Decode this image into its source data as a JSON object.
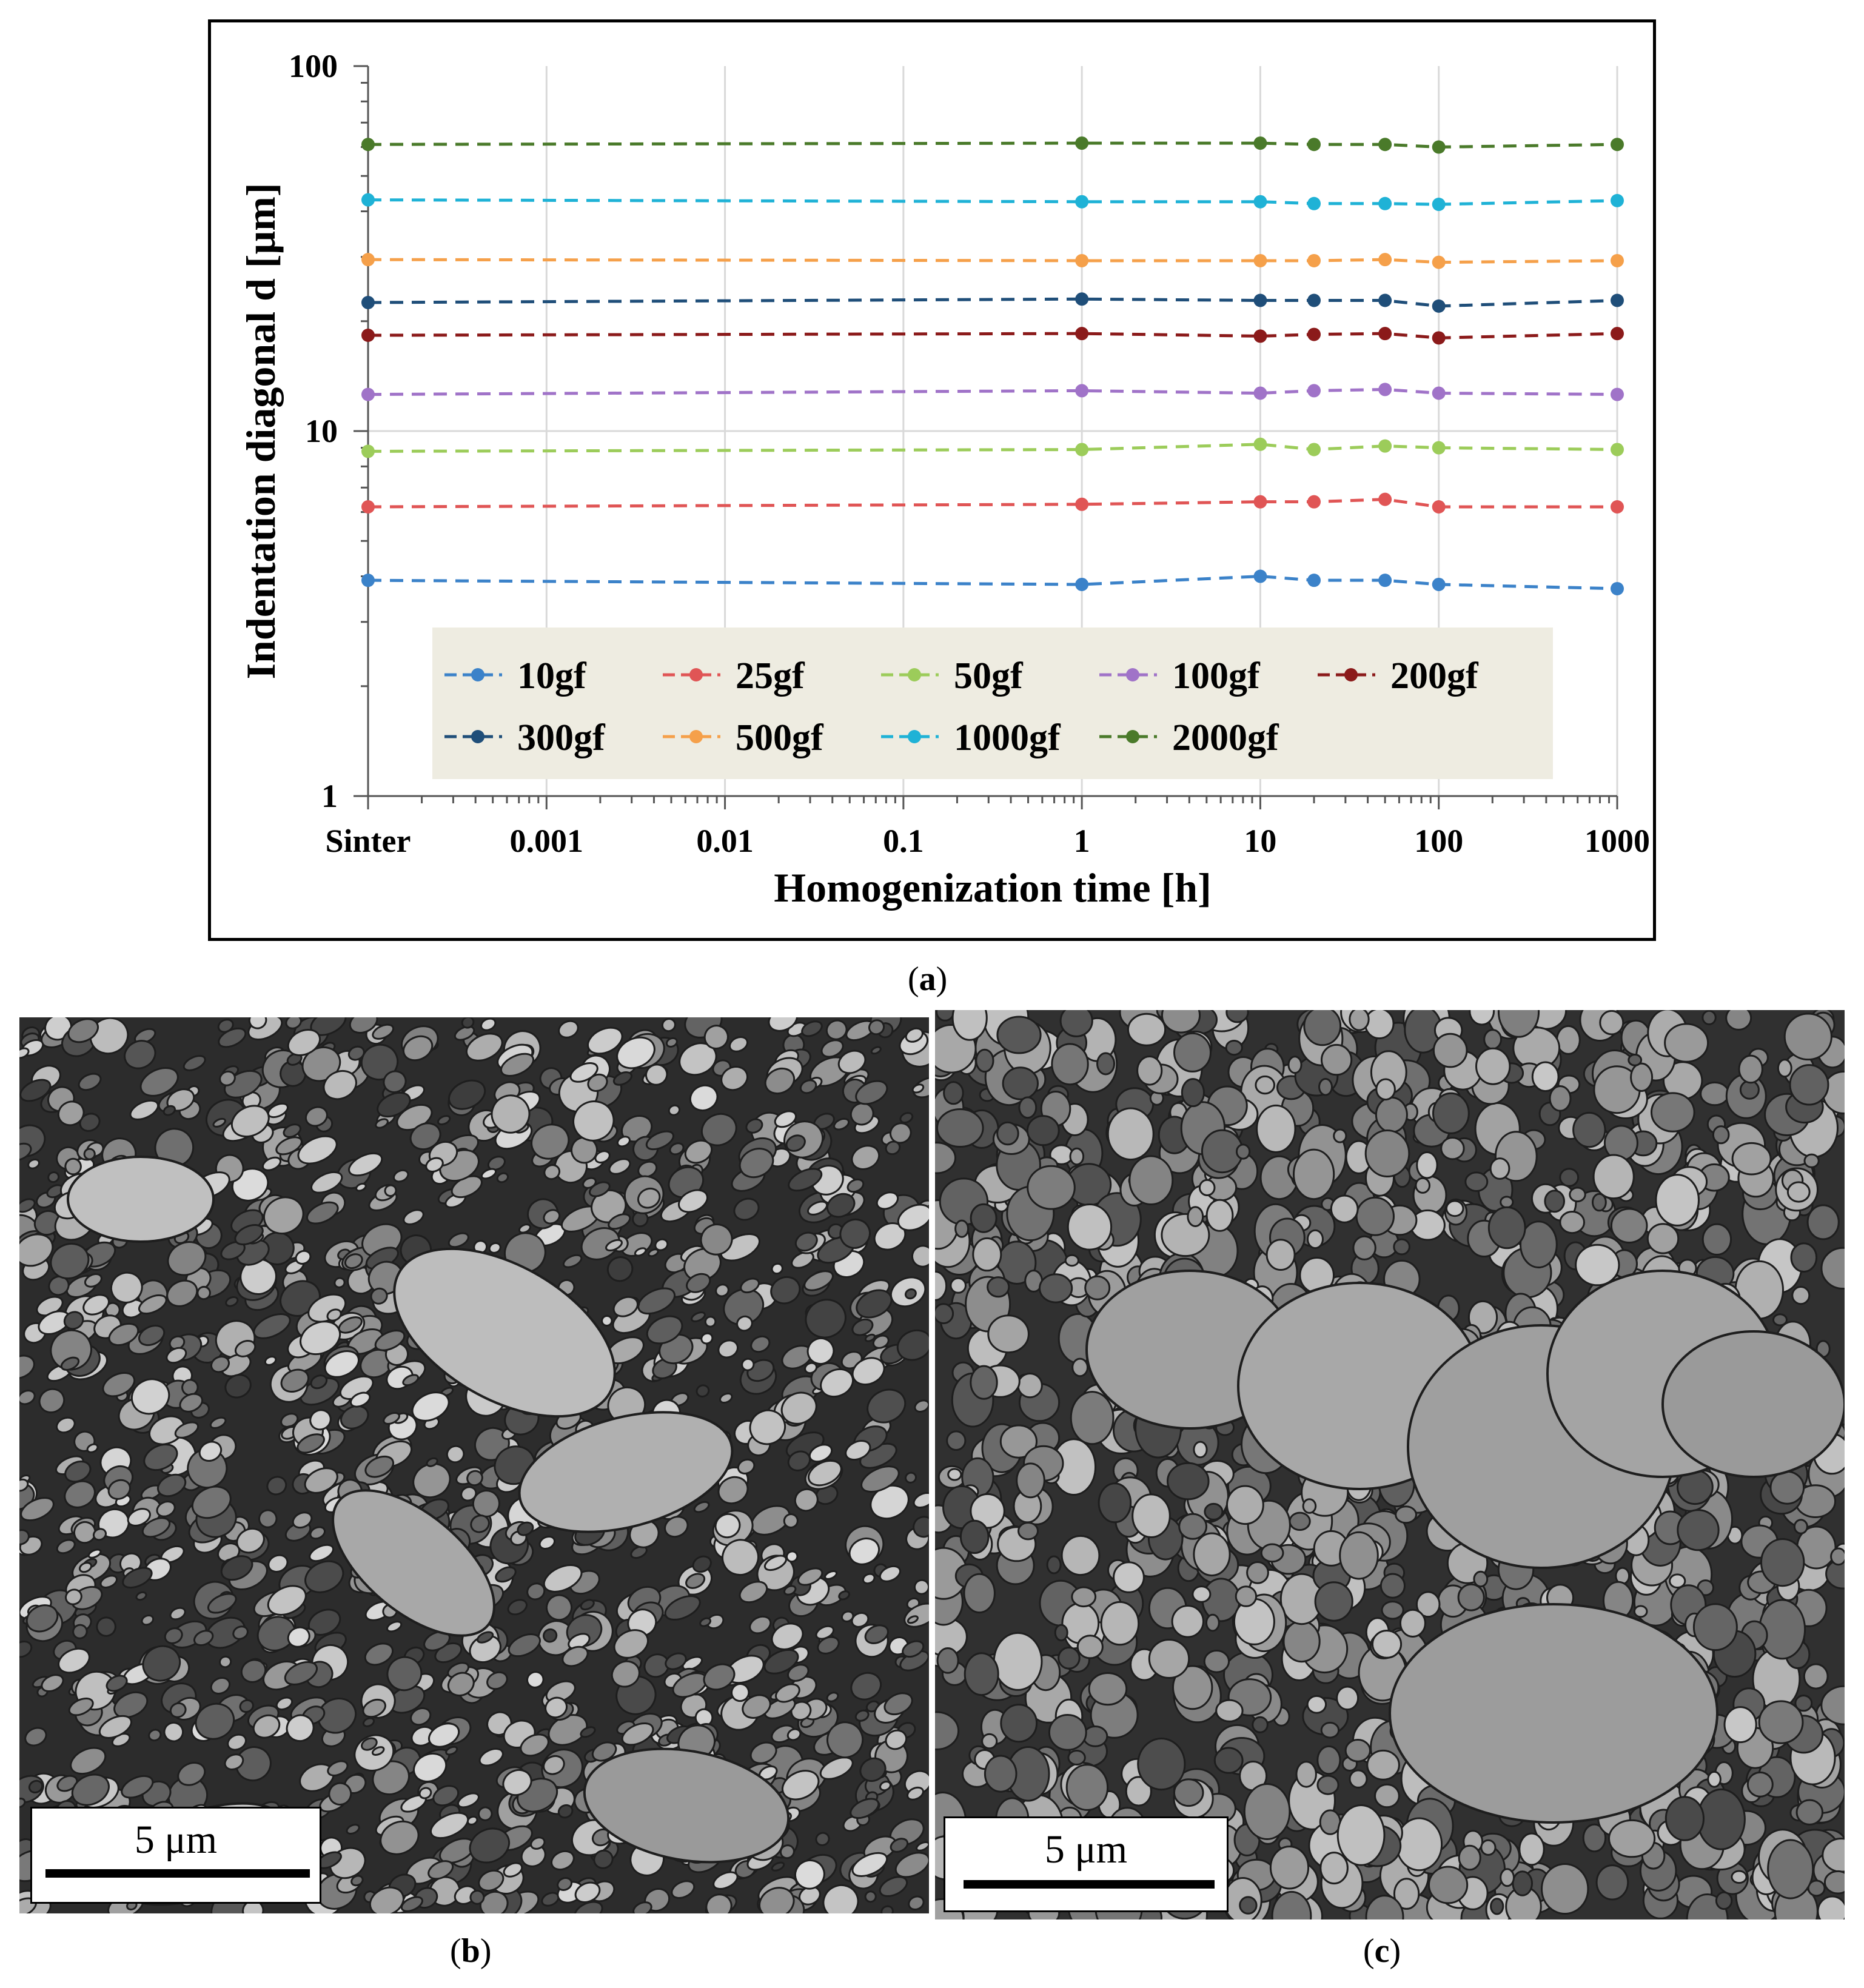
{
  "chart_data": {
    "type": "line",
    "xlabel": "Homogenization time [h]",
    "ylabel": "Indentation diagonal d [μm]",
    "x_scale": "log",
    "y_scale": "log",
    "ylim": [
      1,
      100
    ],
    "y_ticks": [
      "1",
      "10",
      "100"
    ],
    "x_tick_labels": [
      "Sinter",
      "0.001",
      "0.01",
      "0.1",
      "1",
      "10",
      "100",
      "1000"
    ],
    "grid": "vertical major gridlines",
    "legend_position": "bottom",
    "x": [
      "Sinter",
      1,
      10,
      20,
      50,
      100,
      1000
    ],
    "series": [
      {
        "name": "10gf",
        "color": "#3b82c9",
        "values": [
          3.9,
          3.8,
          4.0,
          3.9,
          3.9,
          3.8,
          3.7
        ]
      },
      {
        "name": "25gf",
        "color": "#e05555",
        "values": [
          6.2,
          6.3,
          6.4,
          6.4,
          6.5,
          6.2,
          6.2
        ]
      },
      {
        "name": "50gf",
        "color": "#9ccc5a",
        "values": [
          8.8,
          8.9,
          9.2,
          8.9,
          9.1,
          9.0,
          8.9
        ]
      },
      {
        "name": "100gf",
        "color": "#a073c8",
        "values": [
          12.6,
          12.9,
          12.7,
          12.9,
          13.0,
          12.7,
          12.6
        ]
      },
      {
        "name": "200gf",
        "color": "#8b1a1a",
        "values": [
          18.3,
          18.5,
          18.2,
          18.4,
          18.5,
          18.0,
          18.5
        ]
      },
      {
        "name": "300gf",
        "color": "#1f4e79",
        "values": [
          22.5,
          23.0,
          22.8,
          22.8,
          22.8,
          22.0,
          22.8
        ]
      },
      {
        "name": "500gf",
        "color": "#f5a04a",
        "values": [
          29.5,
          29.3,
          29.3,
          29.3,
          29.5,
          29.0,
          29.3
        ]
      },
      {
        "name": "1000gf",
        "color": "#1fb2d6",
        "values": [
          43.0,
          42.5,
          42.5,
          42.0,
          42.0,
          41.8,
          42.8
        ]
      },
      {
        "name": "2000gf",
        "color": "#4a7a2a",
        "values": [
          61.0,
          61.5,
          61.5,
          61.0,
          61.0,
          60.0,
          61.0
        ]
      }
    ]
  },
  "captions": {
    "a": "a",
    "b": "b",
    "c": "c"
  },
  "micrographs": {
    "b": {
      "scale_bar": "5 μm"
    },
    "c": {
      "scale_bar": "5 μm"
    }
  }
}
